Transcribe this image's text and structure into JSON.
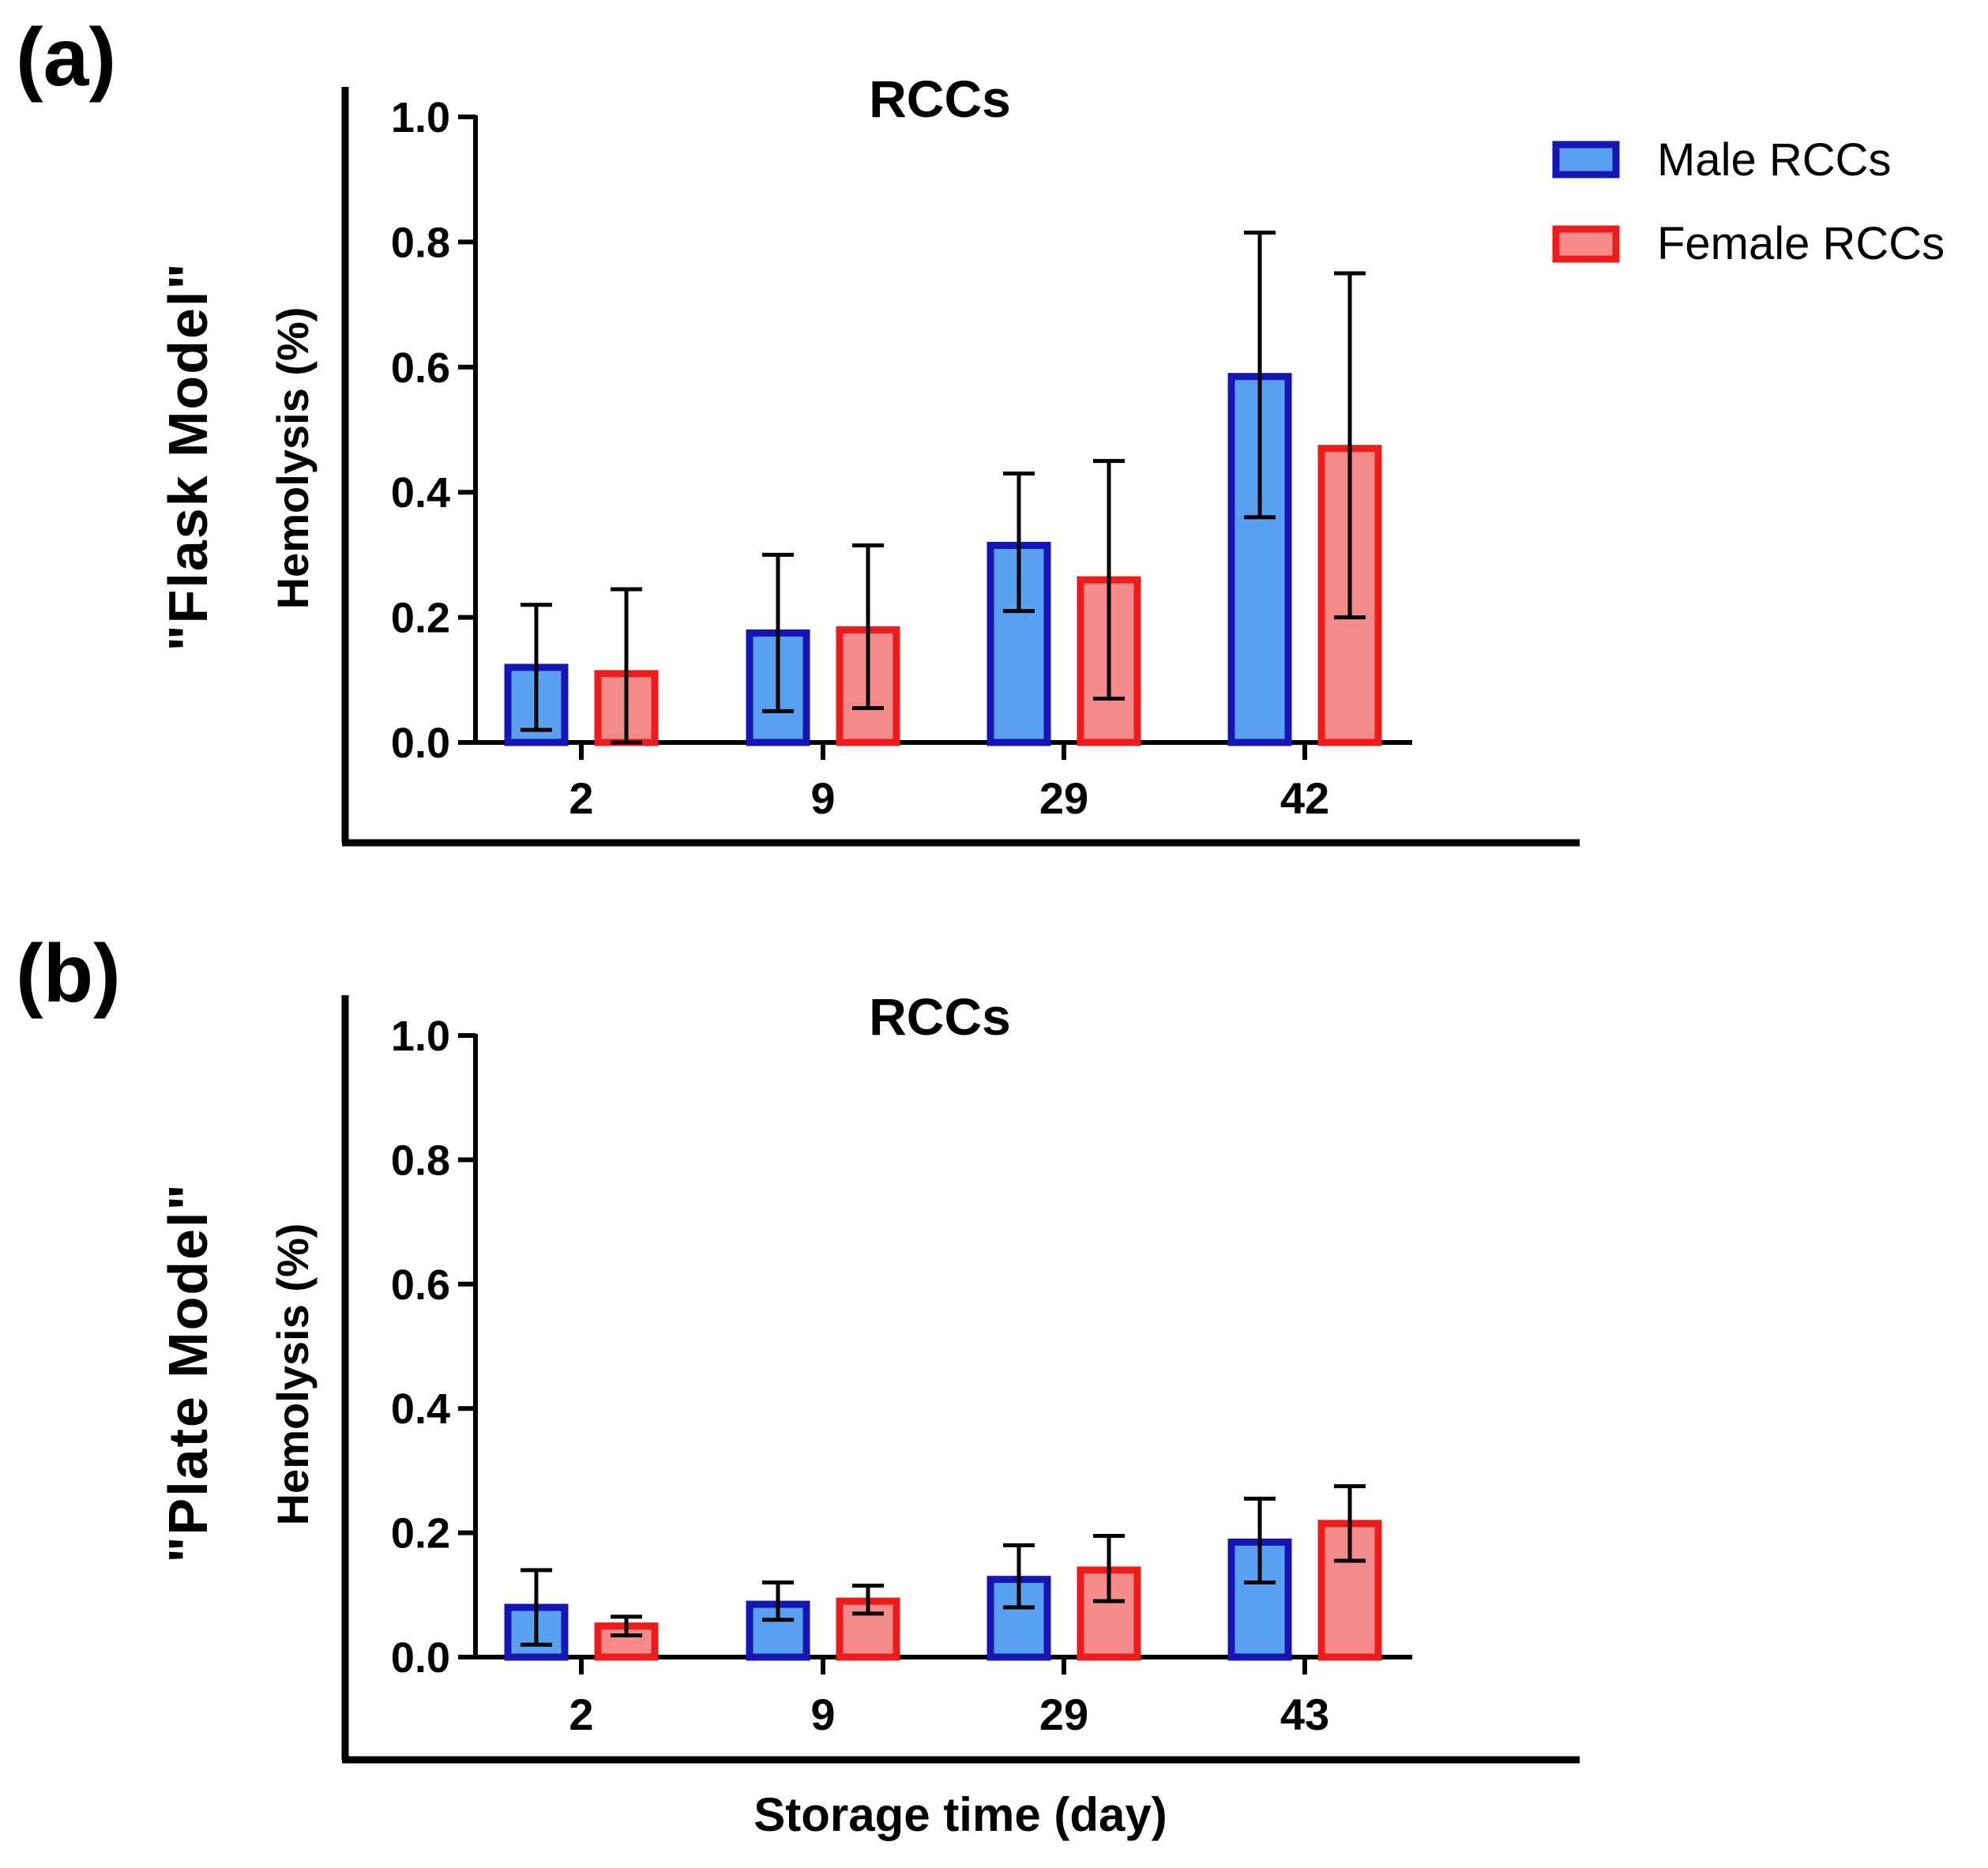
{
  "legend": {
    "entries": [
      "Male RCCs",
      "Female RCCs"
    ]
  },
  "shared_xlabel": "Storage time (day)",
  "colors": {
    "male_fill": "#5aa0f2",
    "male_stroke": "#1616b4",
    "female_fill": "#f58a8a",
    "female_stroke": "#ec1c1c",
    "axis": "#000000"
  },
  "chart_data": [
    {
      "type": "bar",
      "panel_label": "(a)",
      "model_label": "\"Flask Model\"",
      "title": "RCCs",
      "ylabel": "Hemolysis (%)",
      "xlabel": "Storage time (day)",
      "ylim": [
        0,
        1.0
      ],
      "yticks": [
        "0.0",
        "0.2",
        "0.4",
        "0.6",
        "0.8",
        "1.0"
      ],
      "categories": [
        "2",
        "9",
        "29",
        "42"
      ],
      "series": [
        {
          "name": "Male RCCs",
          "values": [
            0.12,
            0.175,
            0.315,
            0.585
          ],
          "err_low": [
            0.02,
            0.05,
            0.21,
            0.36
          ],
          "err_high": [
            0.22,
            0.3,
            0.43,
            0.815
          ]
        },
        {
          "name": "Female RCCs",
          "values": [
            0.11,
            0.18,
            0.26,
            0.47
          ],
          "err_low": [
            0.0,
            0.055,
            0.07,
            0.2
          ],
          "err_high": [
            0.245,
            0.315,
            0.45,
            0.75
          ]
        }
      ]
    },
    {
      "type": "bar",
      "panel_label": "(b)",
      "model_label": "\"Plate Model\"",
      "title": "RCCs",
      "ylabel": "Hemolysis (%)",
      "xlabel": "Storage time (day)",
      "ylim": [
        0,
        1.0
      ],
      "yticks": [
        "0.0",
        "0.2",
        "0.4",
        "0.6",
        "0.8",
        "1.0"
      ],
      "categories": [
        "2",
        "9",
        "29",
        "43"
      ],
      "series": [
        {
          "name": "Male RCCs",
          "values": [
            0.08,
            0.085,
            0.125,
            0.185
          ],
          "err_low": [
            0.02,
            0.06,
            0.08,
            0.12
          ],
          "err_high": [
            0.14,
            0.12,
            0.18,
            0.255
          ]
        },
        {
          "name": "Female RCCs",
          "values": [
            0.05,
            0.09,
            0.14,
            0.215
          ],
          "err_low": [
            0.035,
            0.07,
            0.09,
            0.155
          ],
          "err_high": [
            0.065,
            0.115,
            0.195,
            0.275
          ]
        }
      ]
    }
  ]
}
